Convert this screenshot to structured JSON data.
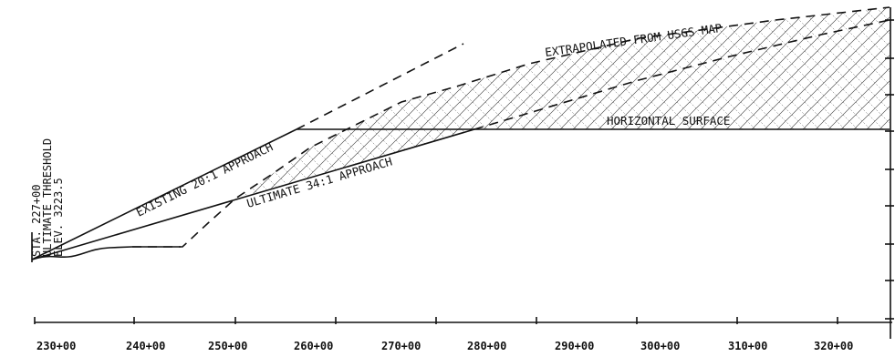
{
  "station_ticks": [
    "230+00",
    "240+00",
    "250+00",
    "260+00",
    "270+00",
    "280+00",
    "290+00",
    "300+00",
    "310+00",
    "320+00"
  ],
  "labels": {
    "existing_approach": "EXISTING 20:1 APPROACH",
    "ultimate_approach": "ULTIMATE 34:1 APPROACH",
    "horizontal_surface": "HORIZONTAL SURFACE",
    "usgs": "EXTRAPOLATED FROM USGS MAP",
    "station": "STA. 227+00",
    "threshold": "ULTIMATE THRESHOLD",
    "elevation": "ELEV. 3223.5"
  },
  "colors": {
    "line": "#111111",
    "background": "#ffffff"
  }
}
